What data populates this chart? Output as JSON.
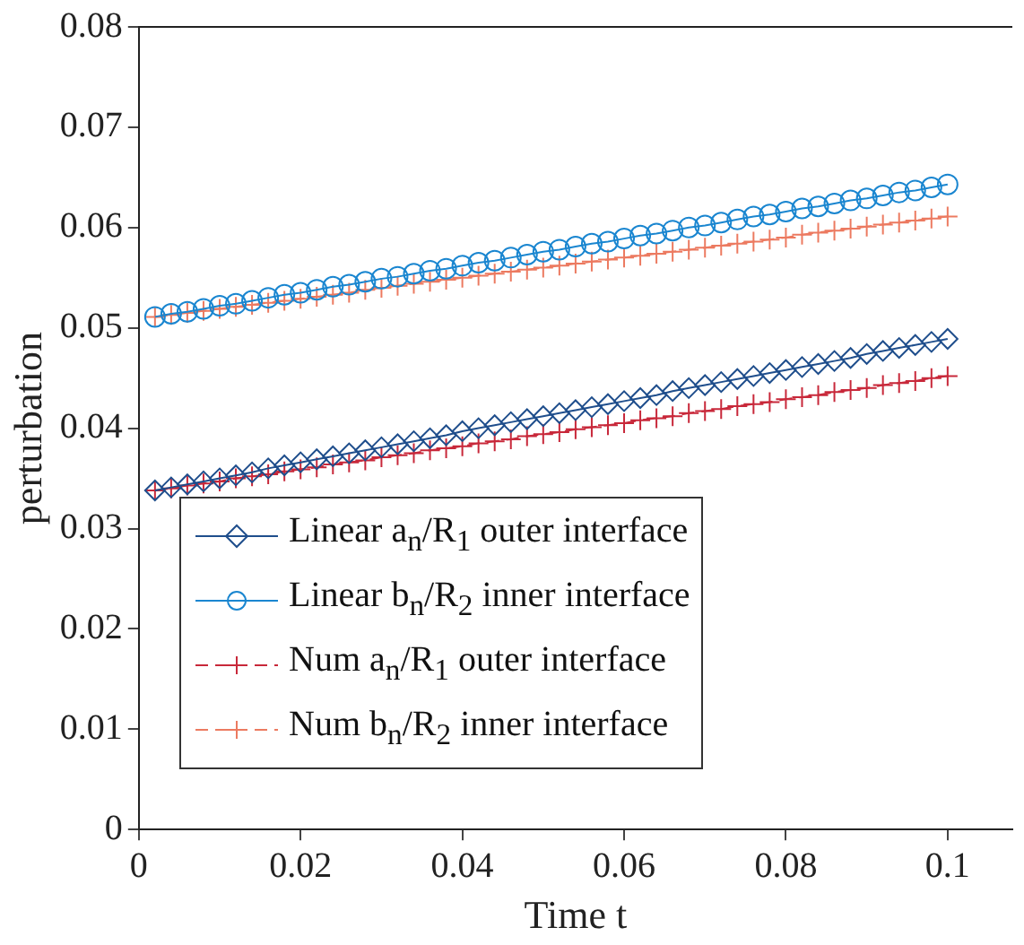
{
  "chart_data": {
    "type": "line",
    "xlabel": "Time t",
    "ylabel": "perturbation",
    "x": [
      0.002,
      0.004,
      0.006,
      0.008,
      0.01,
      0.012,
      0.014,
      0.016,
      0.018,
      0.02,
      0.022,
      0.024,
      0.026,
      0.028,
      0.03,
      0.032,
      0.034,
      0.036,
      0.038,
      0.04,
      0.042,
      0.044,
      0.046,
      0.048,
      0.05,
      0.052,
      0.054,
      0.056,
      0.058,
      0.06,
      0.062,
      0.064,
      0.066,
      0.068,
      0.07,
      0.072,
      0.074,
      0.076,
      0.078,
      0.08,
      0.082,
      0.084,
      0.086,
      0.088,
      0.09,
      0.092,
      0.094,
      0.096,
      0.098,
      0.1
    ],
    "series": [
      {
        "name": "Linear a$_{n}$/R$_{1}$ outer interface",
        "color": "#1f4e8c",
        "marker": "diamond",
        "line_style": "solid",
        "values": [
          0.0338,
          0.0341,
          0.0344,
          0.0347,
          0.035,
          0.0353,
          0.0356,
          0.036,
          0.0363,
          0.0366,
          0.0369,
          0.0372,
          0.0375,
          0.0378,
          0.0381,
          0.0384,
          0.0387,
          0.039,
          0.0393,
          0.0397,
          0.04,
          0.0403,
          0.0406,
          0.0409,
          0.0412,
          0.0415,
          0.0418,
          0.0421,
          0.0424,
          0.0427,
          0.043,
          0.0433,
          0.0437,
          0.044,
          0.0443,
          0.0446,
          0.0449,
          0.0452,
          0.0455,
          0.0458,
          0.0461,
          0.0464,
          0.0467,
          0.047,
          0.0474,
          0.0477,
          0.048,
          0.0483,
          0.0486,
          0.0489
        ]
      },
      {
        "name": "Linear b$_{n}$/R$_{2}$ inner interface",
        "color": "#1a86d0",
        "marker": "circle",
        "line_style": "solid",
        "values": [
          0.0511,
          0.0514,
          0.0516,
          0.0519,
          0.0522,
          0.0524,
          0.0527,
          0.053,
          0.0533,
          0.0535,
          0.0538,
          0.0541,
          0.0543,
          0.0546,
          0.0549,
          0.0551,
          0.0554,
          0.0557,
          0.0559,
          0.0562,
          0.0565,
          0.0567,
          0.057,
          0.0573,
          0.0576,
          0.0578,
          0.0581,
          0.0584,
          0.0586,
          0.0589,
          0.0592,
          0.0594,
          0.0597,
          0.06,
          0.0602,
          0.0605,
          0.0608,
          0.0611,
          0.0613,
          0.0616,
          0.0619,
          0.0621,
          0.0624,
          0.0627,
          0.0629,
          0.0632,
          0.0635,
          0.0637,
          0.064,
          0.0643
        ]
      },
      {
        "name": "Num a$_{n}$/R$_{1}$ outer interface",
        "color": "#c8283a",
        "marker": "cross",
        "line_style": "dashed",
        "values": [
          0.0338,
          0.034,
          0.0343,
          0.0345,
          0.0347,
          0.035,
          0.0352,
          0.0354,
          0.0357,
          0.0359,
          0.0361,
          0.0364,
          0.0366,
          0.0368,
          0.0371,
          0.0373,
          0.0375,
          0.0378,
          0.038,
          0.0382,
          0.0385,
          0.0387,
          0.0389,
          0.0392,
          0.0394,
          0.0396,
          0.0399,
          0.0401,
          0.0403,
          0.0405,
          0.0408,
          0.041,
          0.0412,
          0.0415,
          0.0417,
          0.0419,
          0.0422,
          0.0424,
          0.0426,
          0.0429,
          0.0431,
          0.0433,
          0.0436,
          0.0438,
          0.044,
          0.0443,
          0.0445,
          0.0447,
          0.045,
          0.0452
        ]
      },
      {
        "name": "Num b$_{n}$/R$_{2}$ inner interface",
        "color": "#ec7a60",
        "marker": "cross",
        "line_style": "dashed",
        "values": [
          0.0511,
          0.0513,
          0.0515,
          0.0517,
          0.0519,
          0.0521,
          0.0523,
          0.0525,
          0.0527,
          0.0529,
          0.0531,
          0.0533,
          0.0535,
          0.0538,
          0.054,
          0.0542,
          0.0544,
          0.0546,
          0.0548,
          0.055,
          0.0552,
          0.0554,
          0.0556,
          0.0558,
          0.056,
          0.0562,
          0.0564,
          0.0566,
          0.0568,
          0.057,
          0.0572,
          0.0574,
          0.0576,
          0.0578,
          0.058,
          0.0582,
          0.0584,
          0.0586,
          0.0588,
          0.059,
          0.0593,
          0.0595,
          0.0597,
          0.0599,
          0.0601,
          0.0603,
          0.0605,
          0.0607,
          0.0609,
          0.0611
        ]
      }
    ],
    "xlim": [
      0,
      0.108
    ],
    "xticks": [
      0,
      0.02,
      0.04,
      0.06,
      0.08,
      0.1
    ],
    "ylim": [
      0,
      0.08
    ],
    "yticks": [
      0,
      0.01,
      0.02,
      0.03,
      0.04,
      0.05,
      0.06,
      0.07,
      0.08
    ],
    "grid": false,
    "legend": "bottom left"
  }
}
